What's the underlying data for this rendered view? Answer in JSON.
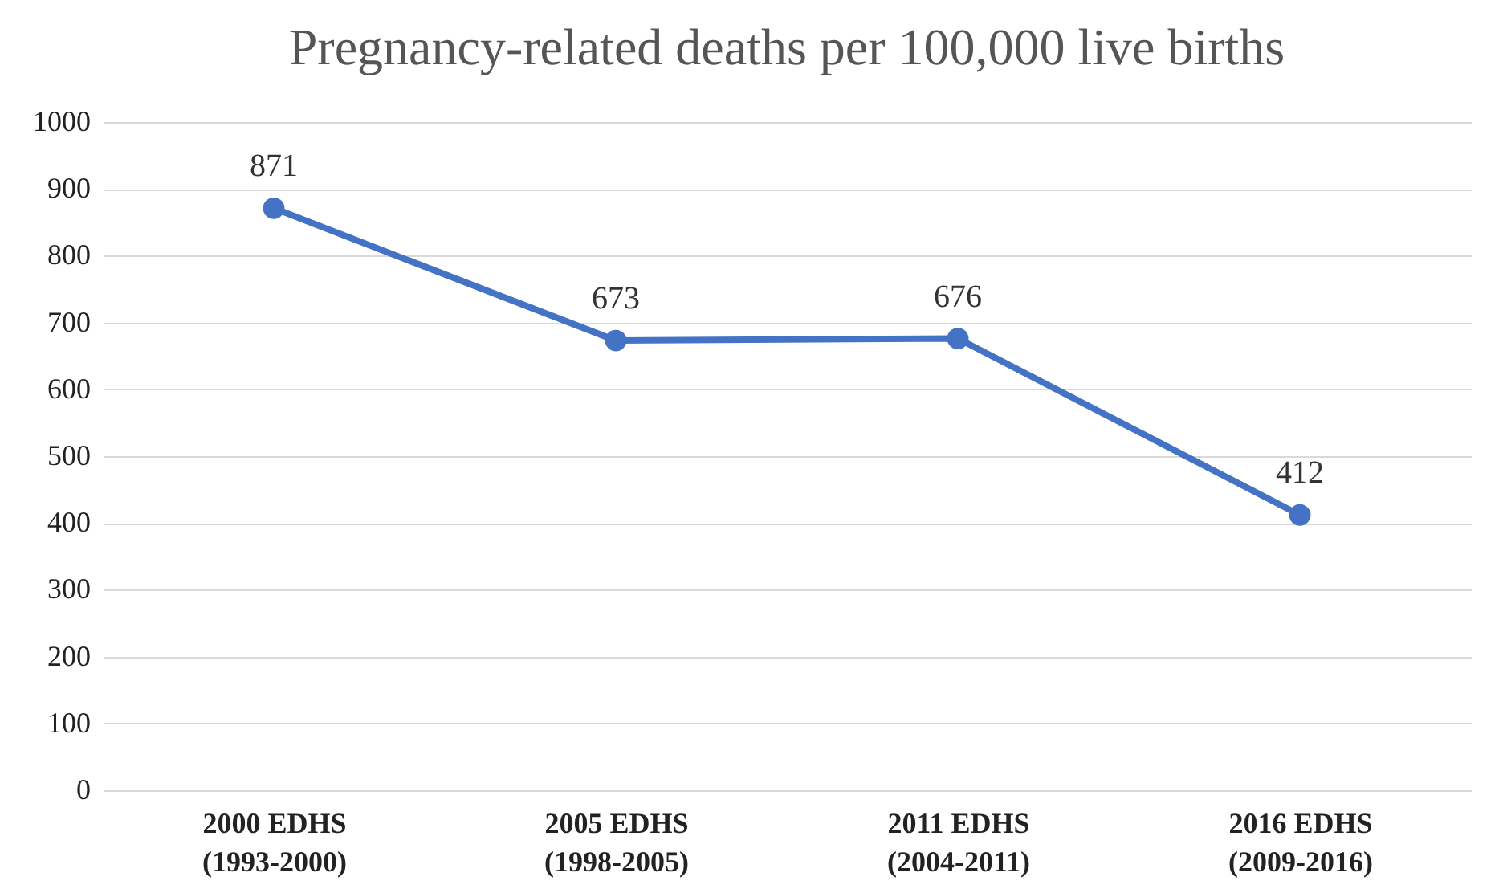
{
  "chart_data": {
    "type": "line",
    "title": "Pregnancy-related deaths per 100,000 live births",
    "categories": [
      "2000 EDHS\n(1993-2000)",
      "2005 EDHS\n(1998-2005)",
      "2011 EDHS\n(2004-2011)",
      "2016 EDHS\n(2009-2016)"
    ],
    "series": [
      {
        "color": "#4472c4",
        "values": [
          871,
          673,
          676,
          412
        ]
      }
    ],
    "ylim": [
      0,
      1000
    ],
    "yticks": [
      0,
      100,
      200,
      300,
      400,
      500,
      600,
      700,
      800,
      900,
      1000
    ],
    "grid": "y",
    "marker": "circle",
    "line_style": "solid",
    "data_labels": true
  }
}
